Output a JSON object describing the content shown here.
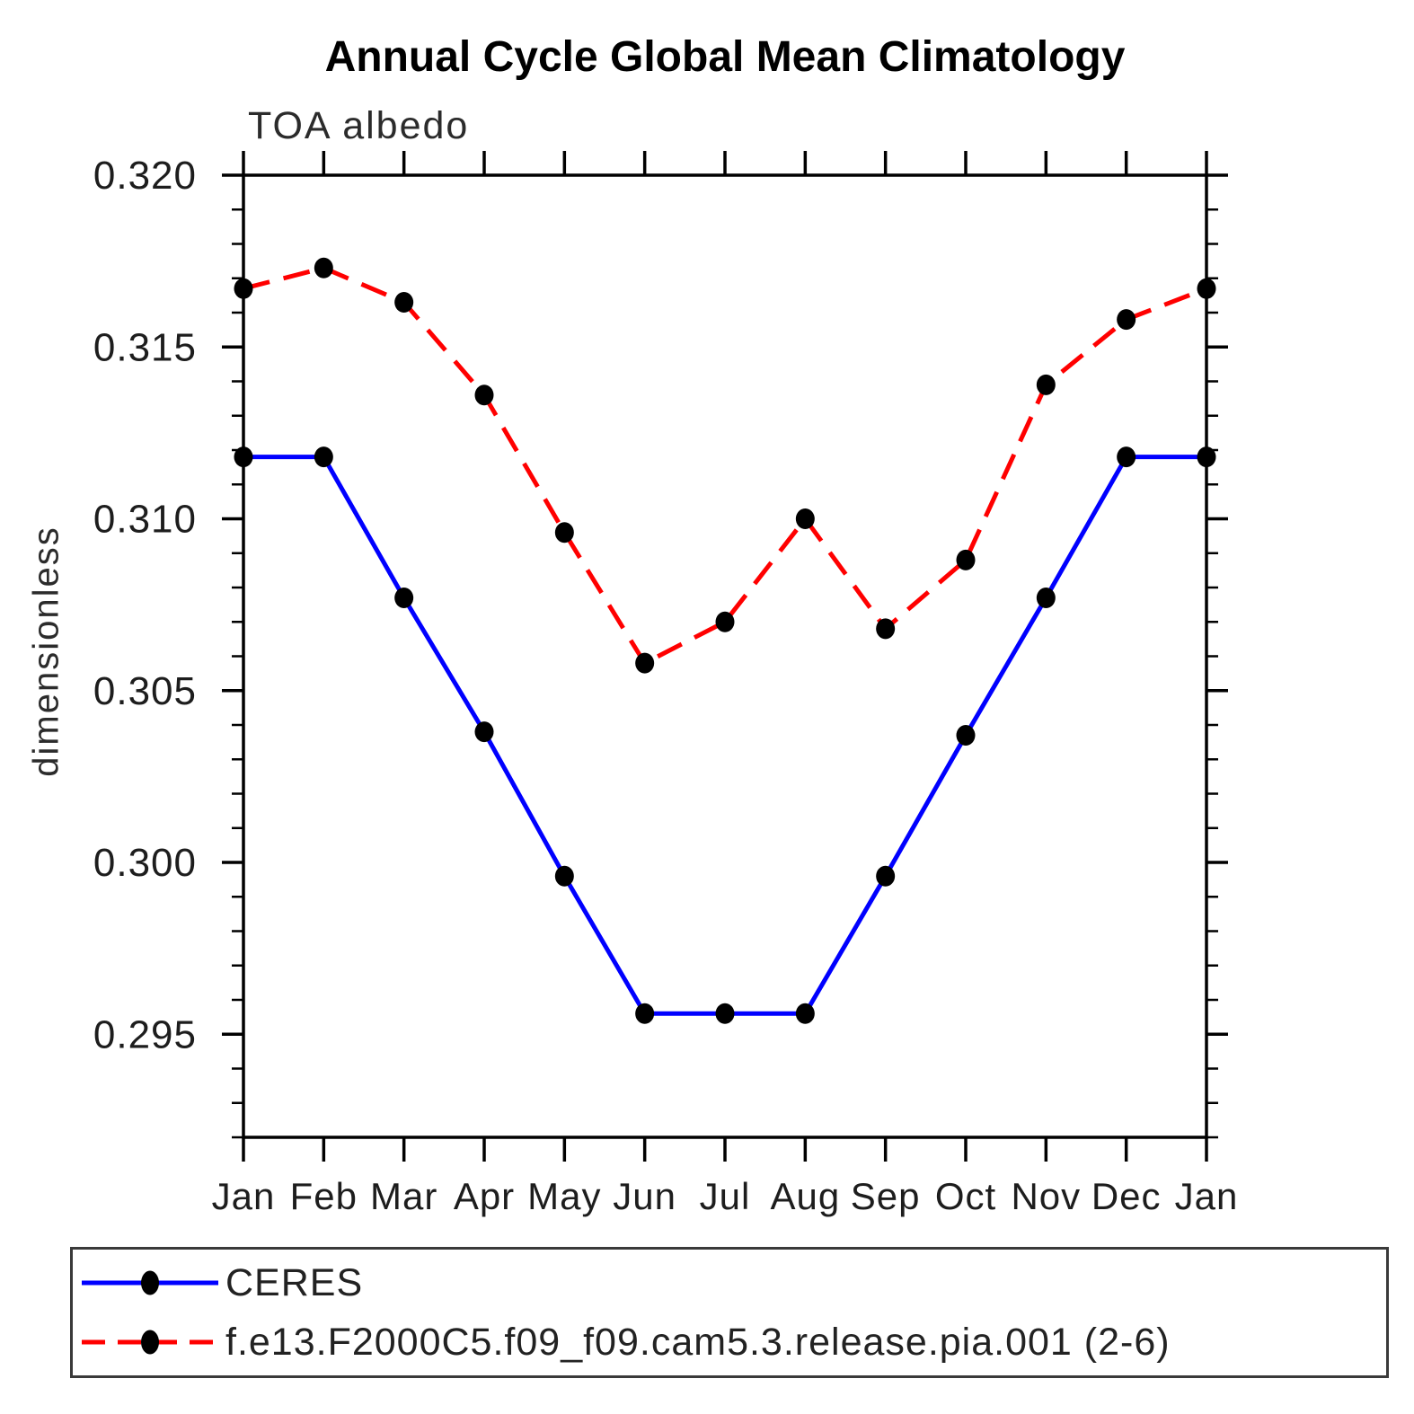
{
  "chart_data": {
    "type": "line",
    "title": "Annual Cycle Global Mean Climatology",
    "subtitle": "TOA albedo",
    "xlabel": "",
    "ylabel": "dimensionless",
    "categories": [
      "Jan",
      "Feb",
      "Mar",
      "Apr",
      "May",
      "Jun",
      "Jul",
      "Aug",
      "Sep",
      "Oct",
      "Nov",
      "Dec",
      "Jan"
    ],
    "ylim": [
      0.292,
      0.32
    ],
    "y_ticks_major": [
      0.295,
      0.3,
      0.305,
      0.31,
      0.315,
      0.32
    ],
    "y_minor_step": 0.001,
    "y_tick_decimals": 3,
    "grid": false,
    "legend_position": "bottom-box",
    "frame_color": "#000000",
    "series": [
      {
        "name": "CERES",
        "line_color": "#0000ff",
        "line_style": "solid",
        "marker": "circle",
        "marker_color": "#000000",
        "values": [
          0.3118,
          0.3118,
          0.3077,
          0.3038,
          0.2996,
          0.2956,
          0.2956,
          0.2956,
          0.2996,
          0.3037,
          0.3077,
          0.3118,
          0.3118
        ]
      },
      {
        "name": "f.e13.F2000C5.f09_f09.cam5.3.release.pia.001 (2-6)",
        "line_color": "#ff0000",
        "line_style": "dashed",
        "marker": "circle",
        "marker_color": "#000000",
        "values": [
          0.3167,
          0.3173,
          0.3163,
          0.3136,
          0.3096,
          0.3058,
          0.307,
          0.31,
          0.3068,
          0.3088,
          0.3139,
          0.3158,
          0.3167
        ]
      }
    ]
  }
}
